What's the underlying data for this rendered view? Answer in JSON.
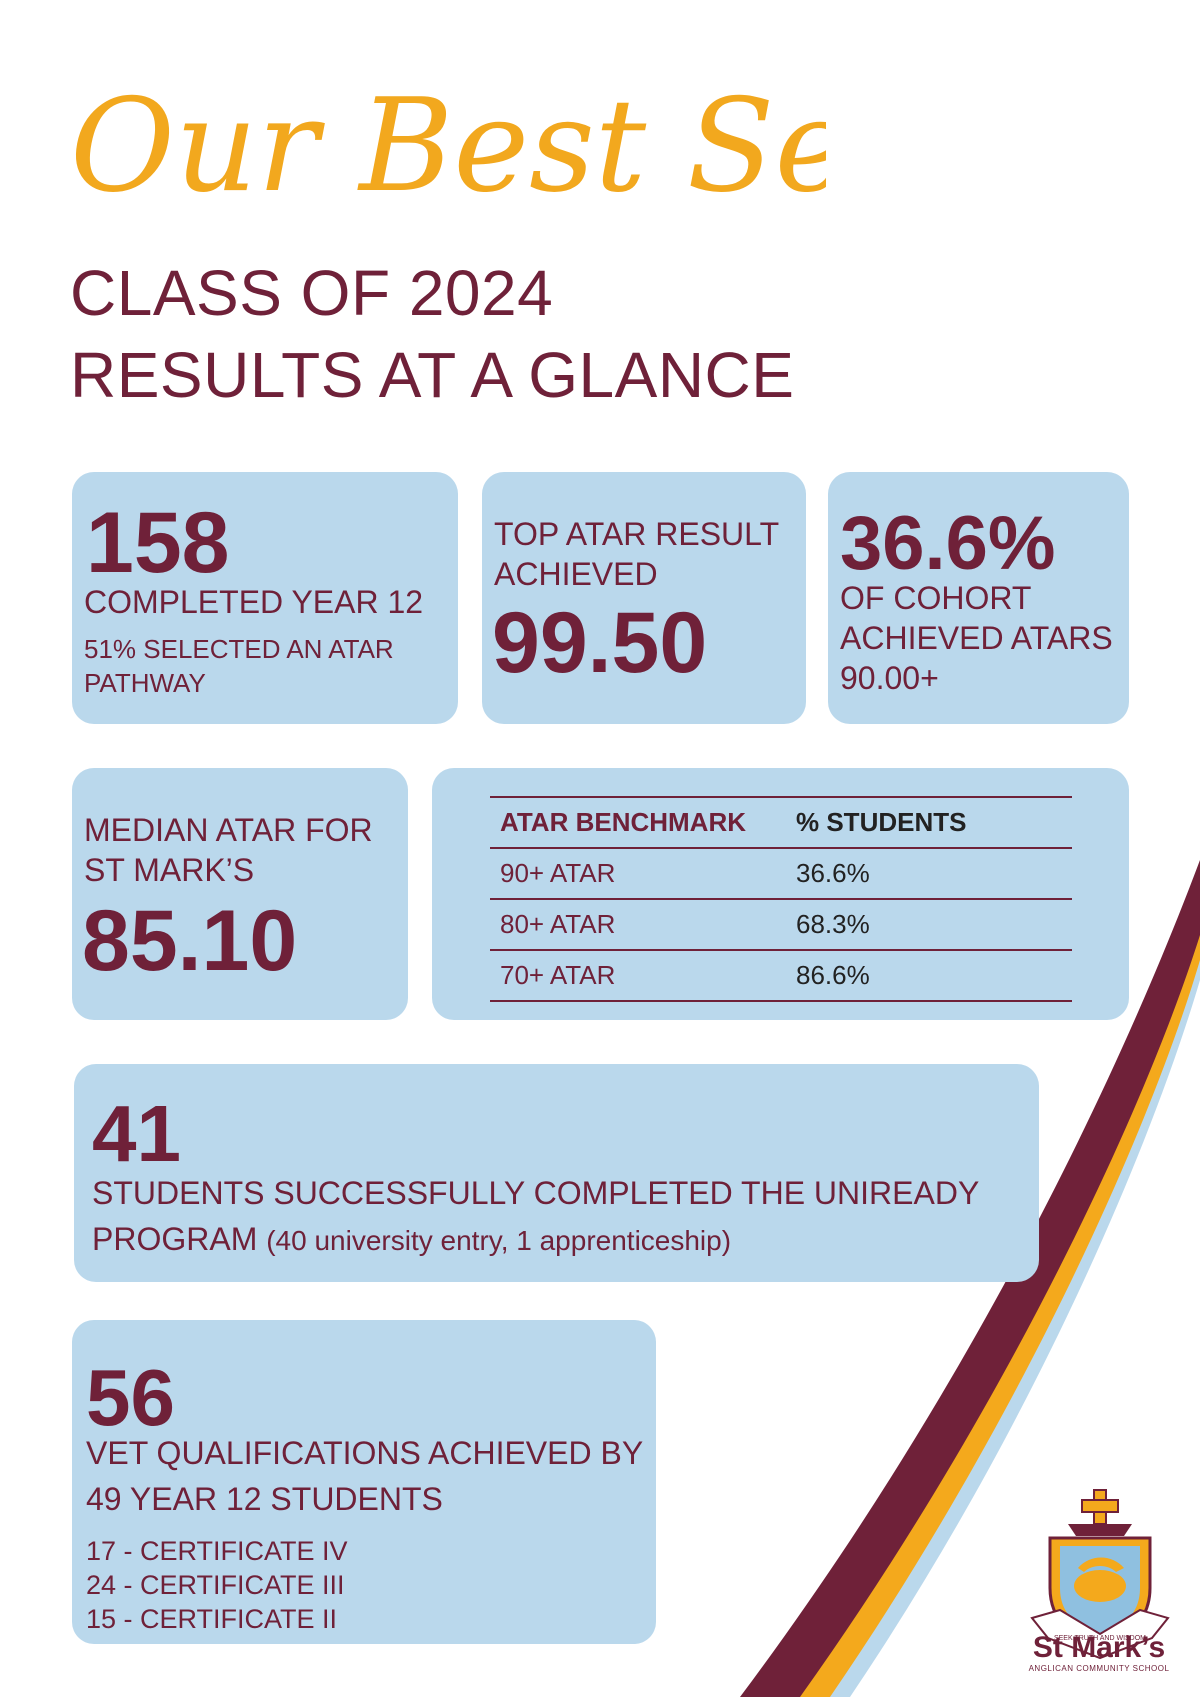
{
  "script_title": "Our Best Selves",
  "headline": {
    "line1": "CLASS OF 2024",
    "line2": "RESULTS AT A GLANCE"
  },
  "cards": {
    "completed": {
      "value": "158",
      "label": "COMPLETED YEAR 12",
      "note": "51% SELECTED AN ATAR PATHWAY"
    },
    "top_atar": {
      "label": "TOP ATAR RESULT ACHIEVED",
      "value": "99.50"
    },
    "cohort": {
      "value": "36.6%",
      "label": "OF COHORT ACHIEVED ATARS 90.00+"
    },
    "median": {
      "label": "MEDIAN ATAR FOR ST MARK’S",
      "value": "85.10"
    },
    "uniready": {
      "value": "41",
      "label": "STUDENTS SUCCESSFULLY COMPLETED THE UNIREADY PROGRAM",
      "detail": "(40 university entry, 1 apprenticeship)"
    },
    "vet": {
      "value": "56",
      "label": "VET QUALIFICATIONS ACHIEVED BY 49 YEAR 12 STUDENTS",
      "items": [
        "17 - CERTIFICATE IV",
        "24 - CERTIFICATE III",
        "15 - CERTIFICATE II"
      ]
    }
  },
  "benchmark_table": {
    "headers": [
      "ATAR BENCHMARK",
      "% STUDENTS"
    ],
    "rows": [
      [
        "90+ ATAR",
        "36.6%"
      ],
      [
        "80+ ATAR",
        "68.3%"
      ],
      [
        "70+ ATAR",
        "86.6%"
      ]
    ]
  },
  "logo": {
    "name": "St Mark’s",
    "subtitle": "ANGLICAN COMMUNITY SCHOOL",
    "motto": "SEEK TRUTH AND WISDOM"
  },
  "colors": {
    "maroon": "#6f2139",
    "gold": "#f4a91c",
    "light_blue": "#bad8ec",
    "title_gold": "#f2a81e"
  }
}
